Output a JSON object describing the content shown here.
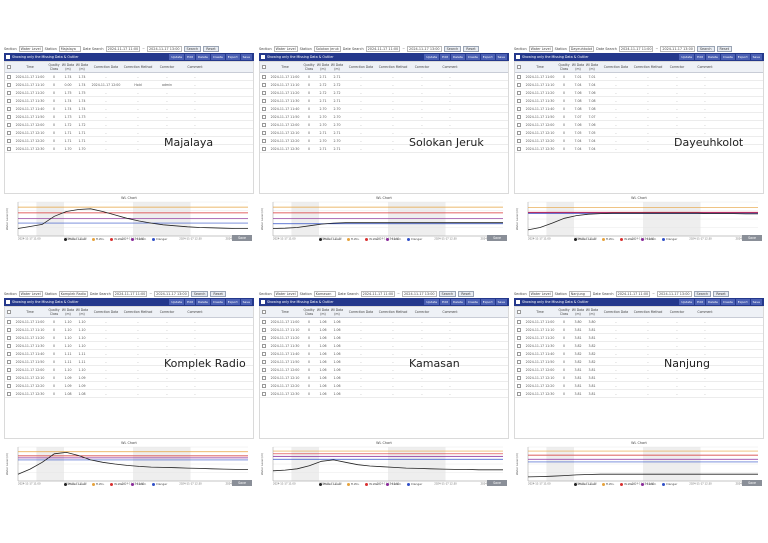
{
  "panels": [
    {
      "location": "Majalaya",
      "filter": {
        "section_label": "Section",
        "section_value": "Water Level",
        "station_label": "Station",
        "station_value": "Majalaya",
        "date_label": "Date Search",
        "date_from": "2024-11-17 11:00",
        "date_to": "2024-11-17 13:00",
        "search_label": "Search",
        "reset_label": "Reset"
      },
      "toolbar_title": "Showing only the Missing Data & Outlier",
      "toolbar_buttons": [
        "Update",
        "Edit",
        "Delete",
        "Create",
        "Export",
        "Save"
      ],
      "columns": [
        "",
        "Time",
        "Quality Class",
        "Wl Data (m)",
        "Wl Data (m)",
        "Correction Data",
        "Correction Method",
        "Corrector",
        "Comment"
      ],
      "rows": [
        [
          "",
          "2024-11-17 11:00",
          "0",
          "1.74",
          "1.74",
          "-",
          "-",
          "-",
          "-"
        ],
        [
          "",
          "2024-11-17 11:10",
          "0",
          "0.00",
          "1.74",
          "2024-11-17 12:00",
          "Hold",
          "admin",
          "-"
        ],
        [
          "",
          "2024-11-17 11:20",
          "0",
          "1.75",
          "1.75",
          "-",
          "-",
          "-",
          "-"
        ],
        [
          "",
          "2024-11-17 11:30",
          "0",
          "1.74",
          "1.74",
          "-",
          "-",
          "-",
          "-"
        ],
        [
          "",
          "2024-11-17 11:40",
          "0",
          "1.74",
          "1.74",
          "-",
          "-",
          "-",
          "-"
        ],
        [
          "",
          "2024-11-17 11:50",
          "0",
          "1.73",
          "1.73",
          "-",
          "-",
          "-",
          "-"
        ],
        [
          "",
          "2024-11-17 12:00",
          "0",
          "1.72",
          "1.72",
          "-",
          "-",
          "-",
          "-"
        ],
        [
          "",
          "2024-11-17 12:10",
          "0",
          "1.71",
          "1.71",
          "-",
          "-",
          "-",
          "-"
        ],
        [
          "",
          "2024-11-17 12:20",
          "0",
          "1.71",
          "1.71",
          "-",
          "-",
          "-",
          "-"
        ],
        [
          "",
          "2024-11-17 12:30",
          "0",
          "1.70",
          "1.70",
          "-",
          "-",
          "-",
          "-"
        ]
      ],
      "chart_title": "WL Chart",
      "ylabel": "Water Level (m)",
      "curve": [
        0.22,
        0.28,
        0.34,
        0.58,
        0.72,
        0.78,
        0.8,
        0.72,
        0.62,
        0.52,
        0.44,
        0.38,
        0.33,
        0.3,
        0.27,
        0.25,
        0.24,
        0.23,
        0.22,
        0.22
      ],
      "thresholds": [
        0.85,
        0.68,
        0.52,
        0.38
      ],
      "save_label": "Save"
    },
    {
      "location": "Solokan Jeruk",
      "filter": {
        "section_label": "Section",
        "section_value": "Water Level",
        "station_label": "Station",
        "station_value": "Solokan Jeruk",
        "date_label": "Date Search",
        "date_from": "2024-11-17 11:00",
        "date_to": "2024-11-17 13:00",
        "search_label": "Search",
        "reset_label": "Reset"
      },
      "toolbar_title": "Showing only the Missing Data & Outlier",
      "toolbar_buttons": [
        "Update",
        "Edit",
        "Delete",
        "Create",
        "Export",
        "Save"
      ],
      "columns": [
        "",
        "Time",
        "Quality Class",
        "Wl Data (m)",
        "Wl Data (m)",
        "Correction Data",
        "Correction Method",
        "Corrector",
        "Comment"
      ],
      "rows": [
        [
          "",
          "2024-11-17 11:00",
          "0",
          "2.71",
          "2.71",
          "-",
          "-",
          "-",
          "-"
        ],
        [
          "",
          "2024-11-17 11:10",
          "0",
          "2.72",
          "2.72",
          "-",
          "-",
          "-",
          "-"
        ],
        [
          "",
          "2024-11-17 11:20",
          "0",
          "2.72",
          "2.72",
          "-",
          "-",
          "-",
          "-"
        ],
        [
          "",
          "2024-11-17 11:30",
          "0",
          "2.71",
          "2.71",
          "-",
          "-",
          "-",
          "-"
        ],
        [
          "",
          "2024-11-17 11:40",
          "0",
          "2.70",
          "2.70",
          "-",
          "-",
          "-",
          "-"
        ],
        [
          "",
          "2024-11-17 11:50",
          "0",
          "2.70",
          "2.70",
          "-",
          "-",
          "-",
          "-"
        ],
        [
          "",
          "2024-11-17 12:00",
          "0",
          "2.70",
          "2.70",
          "-",
          "-",
          "-",
          "-"
        ],
        [
          "",
          "2024-11-17 12:10",
          "0",
          "2.71",
          "2.71",
          "-",
          "-",
          "-",
          "-"
        ],
        [
          "",
          "2024-11-17 12:20",
          "0",
          "2.70",
          "2.70",
          "-",
          "-",
          "-",
          "-"
        ],
        [
          "",
          "2024-11-17 12:30",
          "0",
          "2.71",
          "2.71",
          "-",
          "-",
          "-",
          "-"
        ]
      ],
      "chart_title": "WL Chart",
      "ylabel": "Water Level (m)",
      "curve": [
        0.22,
        0.23,
        0.25,
        0.3,
        0.35,
        0.38,
        0.39,
        0.39,
        0.39,
        0.39,
        0.39,
        0.39,
        0.39,
        0.39,
        0.39,
        0.39,
        0.39,
        0.39,
        0.39,
        0.39
      ],
      "thresholds": [
        0.85,
        0.68,
        0.52,
        0.36
      ],
      "save_label": "Save"
    },
    {
      "location": "Dayeuhkolot",
      "filter": {
        "section_label": "Section",
        "section_value": "Water Level",
        "station_label": "Station",
        "station_value": "Dayeuhkolot",
        "date_label": "Date Search",
        "date_from": "2024-11-17 11:00",
        "date_to": "2024-11-17 13:00",
        "search_label": "Search",
        "reset_label": "Reset"
      },
      "toolbar_title": "Showing only the Missing Data & Outlier",
      "toolbar_buttons": [
        "Update",
        "Edit",
        "Delete",
        "Create",
        "Export",
        "Save"
      ],
      "columns": [
        "",
        "Time",
        "Quality Class",
        "Wl Data (m)",
        "Wl Data (m)",
        "Correction Data",
        "Correction Method",
        "Corrector",
        "Comment"
      ],
      "rows": [
        [
          "",
          "2024-11-17 11:00",
          "0",
          "7.01",
          "7.01",
          "-",
          "-",
          "-",
          "-"
        ],
        [
          "",
          "2024-11-17 11:10",
          "0",
          "7.04",
          "7.04",
          "-",
          "-",
          "-",
          "-"
        ],
        [
          "",
          "2024-11-17 11:20",
          "0",
          "7.06",
          "7.06",
          "-",
          "-",
          "-",
          "-"
        ],
        [
          "",
          "2024-11-17 11:30",
          "0",
          "7.08",
          "7.08",
          "-",
          "-",
          "-",
          "-"
        ],
        [
          "",
          "2024-11-17 11:40",
          "0",
          "7.08",
          "7.08",
          "-",
          "-",
          "-",
          "-"
        ],
        [
          "",
          "2024-11-17 11:50",
          "0",
          "7.07",
          "7.07",
          "-",
          "-",
          "-",
          "-"
        ],
        [
          "",
          "2024-11-17 12:00",
          "0",
          "7.06",
          "7.06",
          "-",
          "-",
          "-",
          "-"
        ],
        [
          "",
          "2024-11-17 12:10",
          "0",
          "7.05",
          "7.05",
          "-",
          "-",
          "-",
          "-"
        ],
        [
          "",
          "2024-11-17 12:20",
          "0",
          "7.04",
          "7.04",
          "-",
          "-",
          "-",
          "-"
        ],
        [
          "",
          "2024-11-17 12:30",
          "0",
          "7.04",
          "7.04",
          "-",
          "-",
          "-",
          "-"
        ]
      ],
      "chart_title": "WL Chart",
      "ylabel": "Water Level (m)",
      "curve": [
        0.18,
        0.25,
        0.38,
        0.52,
        0.6,
        0.64,
        0.66,
        0.67,
        0.67,
        0.67,
        0.67,
        0.67,
        0.67,
        0.67,
        0.67,
        0.66,
        0.66,
        0.66,
        0.65,
        0.65
      ],
      "thresholds": [
        0.84,
        0.7,
        0.68,
        0.66
      ],
      "save_label": "Save"
    },
    {
      "location": "Komplek Radio",
      "filter": {
        "section_label": "Section",
        "section_value": "Water Level",
        "station_label": "Station",
        "station_value": "Komplek Radio",
        "date_label": "Date Search",
        "date_from": "2024-11-17 11:00",
        "date_to": "2024-11-17 13:00",
        "search_label": "Search",
        "reset_label": "Reset"
      },
      "toolbar_title": "Showing only the Missing Data & Outlier",
      "toolbar_buttons": [
        "Update",
        "Edit",
        "Delete",
        "Create",
        "Export",
        "Save"
      ],
      "columns": [
        "",
        "Time",
        "Quality Class",
        "Wl Data (m)",
        "Wl Data (m)",
        "Correction Data",
        "Correction Method",
        "Corrector",
        "Comment"
      ],
      "rows": [
        [
          "",
          "2024-11-17 11:00",
          "0",
          "1.10",
          "1.10",
          "-",
          "-",
          "-",
          "-"
        ],
        [
          "",
          "2024-11-17 11:10",
          "0",
          "1.10",
          "1.10",
          "-",
          "-",
          "-",
          "-"
        ],
        [
          "",
          "2024-11-17 11:20",
          "0",
          "1.10",
          "1.10",
          "-",
          "-",
          "-",
          "-"
        ],
        [
          "",
          "2024-11-17 11:30",
          "0",
          "1.10",
          "1.10",
          "-",
          "-",
          "-",
          "-"
        ],
        [
          "",
          "2024-11-17 11:40",
          "0",
          "1.11",
          "1.11",
          "-",
          "-",
          "-",
          "-"
        ],
        [
          "",
          "2024-11-17 11:50",
          "0",
          "1.11",
          "1.11",
          "-",
          "-",
          "-",
          "-"
        ],
        [
          "",
          "2024-11-17 12:00",
          "0",
          "1.10",
          "1.10",
          "-",
          "-",
          "-",
          "-"
        ],
        [
          "",
          "2024-11-17 12:10",
          "0",
          "1.09",
          "1.09",
          "-",
          "-",
          "-",
          "-"
        ],
        [
          "",
          "2024-11-17 12:20",
          "0",
          "1.09",
          "1.09",
          "-",
          "-",
          "-",
          "-"
        ],
        [
          "",
          "2024-11-17 12:30",
          "0",
          "1.08",
          "1.08",
          "-",
          "-",
          "-",
          "-"
        ]
      ],
      "chart_title": "WL Chart",
      "ylabel": "Water Level (m)",
      "curve": [
        0.2,
        0.35,
        0.55,
        0.8,
        0.84,
        0.75,
        0.62,
        0.55,
        0.5,
        0.46,
        0.43,
        0.41,
        0.4,
        0.39,
        0.38,
        0.37,
        0.36,
        0.35,
        0.34,
        0.34
      ],
      "thresholds": [
        0.86,
        0.74,
        0.68,
        0.62
      ],
      "save_label": "Save"
    },
    {
      "location": "Kamasan",
      "filter": {
        "section_label": "Section",
        "section_value": "Water Level",
        "station_label": "Station",
        "station_value": "Kamasan",
        "date_label": "Date Search",
        "date_from": "2024-11-17 11:00",
        "date_to": "2024-11-17 13:00",
        "search_label": "Search",
        "reset_label": "Reset"
      },
      "toolbar_title": "Showing only the Missing Data & Outlier",
      "toolbar_buttons": [
        "Update",
        "Edit",
        "Delete",
        "Create",
        "Export",
        "Save"
      ],
      "columns": [
        "",
        "Time",
        "Quality Class",
        "Wl Data (m)",
        "Wl Data (m)",
        "Correction Data",
        "Correction Method",
        "Corrector",
        "Comment"
      ],
      "rows": [
        [
          "",
          "2024-11-17 11:00",
          "0",
          "1.06",
          "1.06",
          "-",
          "-",
          "-",
          "-"
        ],
        [
          "",
          "2024-11-17 11:10",
          "0",
          "1.06",
          "1.06",
          "-",
          "-",
          "-",
          "-"
        ],
        [
          "",
          "2024-11-17 11:20",
          "0",
          "1.06",
          "1.06",
          "-",
          "-",
          "-",
          "-"
        ],
        [
          "",
          "2024-11-17 11:30",
          "0",
          "1.06",
          "1.06",
          "-",
          "-",
          "-",
          "-"
        ],
        [
          "",
          "2024-11-17 11:40",
          "0",
          "1.06",
          "1.06",
          "-",
          "-",
          "-",
          "-"
        ],
        [
          "",
          "2024-11-17 11:50",
          "0",
          "1.06",
          "1.06",
          "-",
          "-",
          "-",
          "-"
        ],
        [
          "",
          "2024-11-17 12:00",
          "0",
          "1.06",
          "1.06",
          "-",
          "-",
          "-",
          "-"
        ],
        [
          "",
          "2024-11-17 12:10",
          "0",
          "1.06",
          "1.06",
          "-",
          "-",
          "-",
          "-"
        ],
        [
          "",
          "2024-11-17 12:20",
          "0",
          "1.06",
          "1.06",
          "-",
          "-",
          "-",
          "-"
        ],
        [
          "",
          "2024-11-17 12:30",
          "0",
          "1.06",
          "1.06",
          "-",
          "-",
          "-",
          "-"
        ]
      ],
      "chart_title": "WL Chart",
      "ylabel": "Water Level (m)",
      "curve": [
        0.3,
        0.32,
        0.36,
        0.45,
        0.58,
        0.62,
        0.55,
        0.48,
        0.44,
        0.42,
        0.4,
        0.38,
        0.37,
        0.36,
        0.35,
        0.34,
        0.34,
        0.33,
        0.33,
        0.33
      ],
      "thresholds": [
        0.88,
        0.8,
        0.72,
        0.64
      ],
      "save_label": "Save"
    },
    {
      "location": "Nanjung",
      "filter": {
        "section_label": "Section",
        "section_value": "Water Level",
        "station_label": "Station",
        "station_value": "Nanjung",
        "date_label": "Date Search",
        "date_from": "2024-11-17 11:00",
        "date_to": "2024-11-17 13:00",
        "search_label": "Search",
        "reset_label": "Reset"
      },
      "toolbar_title": "Showing only the Missing Data & Outlier",
      "toolbar_buttons": [
        "Update",
        "Edit",
        "Delete",
        "Create",
        "Export",
        "Save"
      ],
      "columns": [
        "",
        "Time",
        "Quality Class",
        "Wl Data (m)",
        "Wl Data (m)",
        "Correction Data",
        "Correction Method",
        "Corrector",
        "Comment"
      ],
      "rows": [
        [
          "",
          "2024-11-17 11:00",
          "0",
          "3.80",
          "3.80",
          "-",
          "-",
          "-",
          "-"
        ],
        [
          "",
          "2024-11-17 11:10",
          "0",
          "3.81",
          "3.81",
          "-",
          "-",
          "-",
          "-"
        ],
        [
          "",
          "2024-11-17 11:20",
          "0",
          "3.81",
          "3.81",
          "-",
          "-",
          "-",
          "-"
        ],
        [
          "",
          "2024-11-17 11:30",
          "0",
          "3.82",
          "3.82",
          "-",
          "-",
          "-",
          "-"
        ],
        [
          "",
          "2024-11-17 11:40",
          "0",
          "3.82",
          "3.82",
          "-",
          "-",
          "-",
          "-"
        ],
        [
          "",
          "2024-11-17 11:50",
          "0",
          "3.82",
          "3.82",
          "-",
          "-",
          "-",
          "-"
        ],
        [
          "",
          "2024-11-17 12:00",
          "0",
          "3.81",
          "3.81",
          "-",
          "-",
          "-",
          "-"
        ],
        [
          "",
          "2024-11-17 12:10",
          "0",
          "3.81",
          "3.81",
          "-",
          "-",
          "-",
          "-"
        ],
        [
          "",
          "2024-11-17 12:20",
          "0",
          "3.81",
          "3.81",
          "-",
          "-",
          "-",
          "-"
        ],
        [
          "",
          "2024-11-17 12:30",
          "0",
          "3.81",
          "3.81",
          "-",
          "-",
          "-",
          "-"
        ]
      ],
      "chart_title": "WL Chart",
      "ylabel": "Water Level (m)",
      "curve": [
        0.12,
        0.13,
        0.14,
        0.16,
        0.18,
        0.19,
        0.2,
        0.2,
        0.2,
        0.2,
        0.2,
        0.2,
        0.2,
        0.2,
        0.2,
        0.2,
        0.2,
        0.2,
        0.2,
        0.2
      ],
      "thresholds": [
        0.88,
        0.76,
        0.64,
        0.56
      ],
      "save_label": "Save"
    }
  ],
  "legend": [
    "Water Level",
    "H.W.L",
    "W.Warn",
    "H.Warn",
    "Danger"
  ],
  "x_ticks": [
    "2024-11-17 11:00",
    "2024-11-17 11:30",
    "2024-11-17 12:00",
    "2024-11-17 12:30",
    "2024-11-17 13:00"
  ],
  "colors": {
    "toolbar_blue": "#24388c",
    "line": "#222222",
    "threshold": [
      "#e6a23c",
      "#d93030",
      "#8a2a9a",
      "#3050c8"
    ]
  }
}
